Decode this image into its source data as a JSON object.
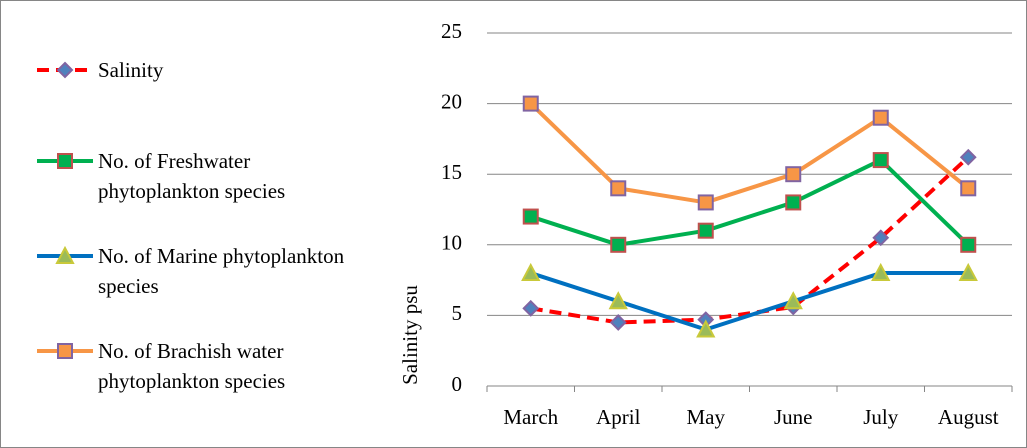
{
  "chart_data": {
    "type": "line",
    "y_label": "Salinity psu",
    "categories": [
      "March",
      "April",
      "May",
      "June",
      "July",
      "August"
    ],
    "ylim": [
      0,
      25
    ],
    "yticks": [
      0,
      5,
      10,
      15,
      20,
      25
    ],
    "grid": true,
    "series": [
      {
        "name": "Salinity",
        "color": "#ff0000",
        "dash": true,
        "marker": "diamond",
        "marker_fill": "#4f81bd",
        "marker_edge": "#8064a2",
        "values": [
          5.5,
          4.5,
          4.7,
          5.6,
          10.5,
          16.2
        ]
      },
      {
        "name": "No. of Freshwater phytoplankton species",
        "color": "#00b050",
        "dash": false,
        "marker": "square",
        "marker_fill": "#00b050",
        "marker_edge": "#c0504d",
        "values": [
          12,
          10,
          11,
          13,
          16,
          10
        ]
      },
      {
        "name": "No. of Marine phytoplankton species",
        "color": "#0070c0",
        "dash": false,
        "marker": "triangle",
        "marker_fill": "#9bbb59",
        "marker_edge": "#c9c93a",
        "values": [
          8,
          6,
          4,
          6,
          8,
          8
        ]
      },
      {
        "name": "No. of Brachish water phytoplankton species",
        "color": "#f79646",
        "dash": false,
        "marker": "square",
        "marker_fill": "#f79646",
        "marker_edge": "#8064a2",
        "values": [
          20,
          14,
          13,
          15,
          19,
          14
        ]
      }
    ]
  }
}
